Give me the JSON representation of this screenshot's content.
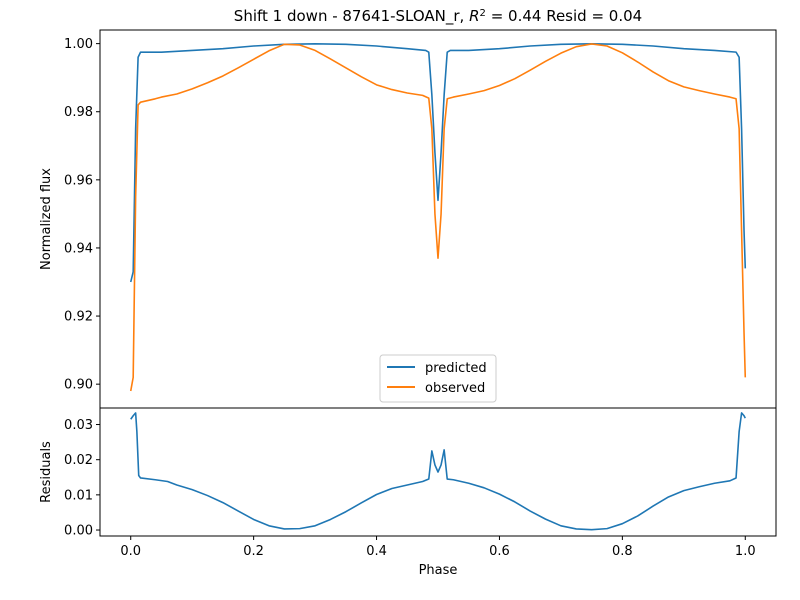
{
  "title_prefix": "Shift 1 down - 87641-SLOAN_r, ",
  "title_r": "R",
  "title_sup": "2",
  "title_suffix": " = 0.44 Resid = 0.04",
  "colors": {
    "predicted": "#1f77b4",
    "observed": "#ff7f0e",
    "axes": "#000000",
    "legend_border": "#cccccc"
  },
  "chart_data": [
    {
      "panel": "flux",
      "type": "line",
      "ylabel": "Normalized flux",
      "xlim": [
        -0.05,
        1.05
      ],
      "ylim": [
        0.893,
        1.004
      ],
      "yticks": [
        0.9,
        0.92,
        0.94,
        0.96,
        0.98,
        1.0
      ],
      "ytick_labels": [
        "0.90",
        "0.92",
        "0.94",
        "0.96",
        "0.98",
        "1.00"
      ],
      "legend": {
        "position": "lower-center",
        "entries": [
          "predicted",
          "observed"
        ]
      },
      "series": [
        {
          "name": "predicted",
          "points": [
            [
              0.0,
              0.93
            ],
            [
              0.004,
              0.933
            ],
            [
              0.008,
              0.975
            ],
            [
              0.012,
              0.996
            ],
            [
              0.016,
              0.9975
            ],
            [
              0.05,
              0.9975
            ],
            [
              0.1,
              0.998
            ],
            [
              0.15,
              0.9985
            ],
            [
              0.2,
              0.9993
            ],
            [
              0.25,
              0.9998
            ],
            [
              0.3,
              0.99995
            ],
            [
              0.35,
              0.9998
            ],
            [
              0.4,
              0.9993
            ],
            [
              0.45,
              0.9985
            ],
            [
              0.48,
              0.998
            ],
            [
              0.485,
              0.9975
            ],
            [
              0.49,
              0.985
            ],
            [
              0.495,
              0.968
            ],
            [
              0.5,
              0.954
            ],
            [
              0.505,
              0.968
            ],
            [
              0.51,
              0.985
            ],
            [
              0.515,
              0.9975
            ],
            [
              0.52,
              0.998
            ],
            [
              0.55,
              0.998
            ],
            [
              0.6,
              0.9985
            ],
            [
              0.65,
              0.9993
            ],
            [
              0.7,
              0.9998
            ],
            [
              0.75,
              0.99995
            ],
            [
              0.8,
              0.9998
            ],
            [
              0.85,
              0.9993
            ],
            [
              0.9,
              0.9985
            ],
            [
              0.95,
              0.998
            ],
            [
              0.985,
              0.9975
            ],
            [
              0.99,
              0.996
            ],
            [
              0.994,
              0.975
            ],
            [
              0.998,
              0.945
            ],
            [
              1.0,
              0.934
            ]
          ]
        },
        {
          "name": "observed",
          "points": [
            [
              0.0,
              0.898
            ],
            [
              0.004,
              0.902
            ],
            [
              0.008,
              0.955
            ],
            [
              0.012,
              0.982
            ],
            [
              0.016,
              0.9828
            ],
            [
              0.04,
              0.9838
            ],
            [
              0.05,
              0.9843
            ],
            [
              0.075,
              0.9852
            ],
            [
              0.1,
              0.9867
            ],
            [
              0.125,
              0.9885
            ],
            [
              0.15,
              0.9905
            ],
            [
              0.175,
              0.9929
            ],
            [
              0.2,
              0.9954
            ],
            [
              0.225,
              0.9979
            ],
            [
              0.25,
              0.9998
            ],
            [
              0.275,
              0.9996
            ],
            [
              0.3,
              0.998
            ],
            [
              0.325,
              0.9955
            ],
            [
              0.35,
              0.9929
            ],
            [
              0.375,
              0.9903
            ],
            [
              0.4,
              0.9879
            ],
            [
              0.425,
              0.9865
            ],
            [
              0.45,
              0.9855
            ],
            [
              0.475,
              0.9848
            ],
            [
              0.485,
              0.984
            ],
            [
              0.49,
              0.975
            ],
            [
              0.495,
              0.95
            ],
            [
              0.5,
              0.937
            ],
            [
              0.505,
              0.95
            ],
            [
              0.51,
              0.975
            ],
            [
              0.515,
              0.9838
            ],
            [
              0.525,
              0.9843
            ],
            [
              0.55,
              0.9852
            ],
            [
              0.575,
              0.9862
            ],
            [
              0.6,
              0.9877
            ],
            [
              0.625,
              0.9897
            ],
            [
              0.65,
              0.9922
            ],
            [
              0.675,
              0.9948
            ],
            [
              0.7,
              0.9972
            ],
            [
              0.725,
              0.9991
            ],
            [
              0.75,
              0.9999
            ],
            [
              0.775,
              0.9993
            ],
            [
              0.8,
              0.9973
            ],
            [
              0.825,
              0.9946
            ],
            [
              0.85,
              0.9917
            ],
            [
              0.875,
              0.9891
            ],
            [
              0.9,
              0.9873
            ],
            [
              0.925,
              0.9862
            ],
            [
              0.95,
              0.9852
            ],
            [
              0.975,
              0.9843
            ],
            [
              0.985,
              0.9838
            ],
            [
              0.99,
              0.975
            ],
            [
              0.994,
              0.945
            ],
            [
              0.998,
              0.915
            ],
            [
              1.0,
              0.902
            ]
          ]
        }
      ]
    },
    {
      "panel": "residuals",
      "type": "line",
      "xlabel": "Phase",
      "ylabel": "Residuals",
      "xlim": [
        -0.05,
        1.05
      ],
      "ylim": [
        -0.0017,
        0.0347
      ],
      "xticks": [
        0.0,
        0.2,
        0.4,
        0.6,
        0.8,
        1.0
      ],
      "xtick_labels": [
        "0.0",
        "0.2",
        "0.4",
        "0.6",
        "0.8",
        "1.0"
      ],
      "yticks": [
        0.0,
        0.01,
        0.02,
        0.03
      ],
      "ytick_labels": [
        "0.00",
        "0.01",
        "0.02",
        "0.03"
      ],
      "series": [
        {
          "name": "predicted",
          "points": [
            [
              0.0,
              0.0315
            ],
            [
              0.004,
              0.0325
            ],
            [
              0.008,
              0.0333
            ],
            [
              0.01,
              0.028
            ],
            [
              0.013,
              0.0155
            ],
            [
              0.016,
              0.0148
            ],
            [
              0.04,
              0.0143
            ],
            [
              0.06,
              0.0138
            ],
            [
              0.075,
              0.0128
            ],
            [
              0.1,
              0.0115
            ],
            [
              0.125,
              0.0098
            ],
            [
              0.15,
              0.0078
            ],
            [
              0.175,
              0.0054
            ],
            [
              0.2,
              0.003
            ],
            [
              0.225,
              0.0012
            ],
            [
              0.25,
              0.0003
            ],
            [
              0.275,
              0.0004
            ],
            [
              0.3,
              0.0012
            ],
            [
              0.325,
              0.003
            ],
            [
              0.35,
              0.0052
            ],
            [
              0.375,
              0.0077
            ],
            [
              0.4,
              0.0101
            ],
            [
              0.425,
              0.0118
            ],
            [
              0.45,
              0.0128
            ],
            [
              0.475,
              0.0138
            ],
            [
              0.485,
              0.0145
            ],
            [
              0.49,
              0.0225
            ],
            [
              0.495,
              0.0185
            ],
            [
              0.5,
              0.0165
            ],
            [
              0.505,
              0.0185
            ],
            [
              0.51,
              0.0228
            ],
            [
              0.515,
              0.0145
            ],
            [
              0.525,
              0.0143
            ],
            [
              0.55,
              0.0133
            ],
            [
              0.575,
              0.012
            ],
            [
              0.6,
              0.0102
            ],
            [
              0.625,
              0.008
            ],
            [
              0.65,
              0.0054
            ],
            [
              0.675,
              0.0031
            ],
            [
              0.7,
              0.0012
            ],
            [
              0.725,
              0.0003
            ],
            [
              0.75,
              0.0001
            ],
            [
              0.775,
              0.0004
            ],
            [
              0.8,
              0.0018
            ],
            [
              0.825,
              0.004
            ],
            [
              0.85,
              0.0068
            ],
            [
              0.875,
              0.0094
            ],
            [
              0.9,
              0.0112
            ],
            [
              0.925,
              0.0123
            ],
            [
              0.95,
              0.0133
            ],
            [
              0.975,
              0.014
            ],
            [
              0.985,
              0.0148
            ],
            [
              0.99,
              0.028
            ],
            [
              0.994,
              0.0333
            ],
            [
              0.998,
              0.0325
            ],
            [
              1.0,
              0.0318
            ]
          ]
        }
      ]
    }
  ]
}
